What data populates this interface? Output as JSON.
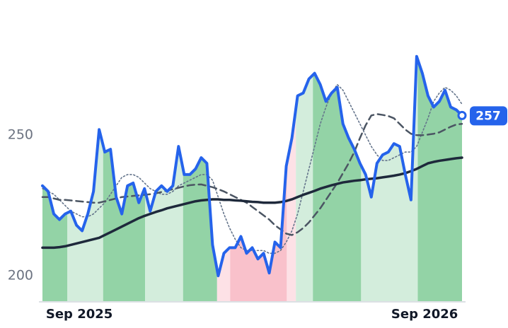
{
  "chart_data": {
    "type": "line",
    "xlim": [
      0,
      74
    ],
    "ylim": [
      191,
      288
    ],
    "yticks": [
      200,
      250
    ],
    "xticks": [
      {
        "value": 6.5,
        "label": "Sep 2025"
      },
      {
        "value": 67.4,
        "label": "Sep 2026"
      }
    ],
    "shading": [
      {
        "from": 0,
        "to": 4.4,
        "color": "#93d3a6"
      },
      {
        "from": 4.4,
        "to": 10.7,
        "color": "#d3eddc"
      },
      {
        "from": 10.7,
        "to": 18.1,
        "color": "#93d3a6"
      },
      {
        "from": 18.1,
        "to": 24.8,
        "color": "#d3eddc"
      },
      {
        "from": 24.8,
        "to": 30.8,
        "color": "#93d3a6"
      },
      {
        "from": 30.8,
        "to": 33.1,
        "color": "#fde1e6"
      },
      {
        "from": 33.1,
        "to": 43.1,
        "color": "#f9c1cb"
      },
      {
        "from": 43.1,
        "to": 44.7,
        "color": "#fde1e6"
      },
      {
        "from": 44.7,
        "to": 47.7,
        "color": "#d3eddc"
      },
      {
        "from": 47.7,
        "to": 56.2,
        "color": "#93d3a6"
      },
      {
        "from": 56.2,
        "to": 66.2,
        "color": "#d3eddc"
      },
      {
        "from": 66.2,
        "to": 74,
        "color": "#93d3a6"
      }
    ],
    "series": [
      {
        "color": "#2563eb",
        "width": 4,
        "dash": "none",
        "values": [
          232,
          230,
          222,
          220,
          222,
          223,
          218,
          216,
          222,
          230,
          252,
          244,
          245,
          228,
          222,
          232,
          233,
          226,
          231,
          223,
          230,
          232,
          230,
          232,
          246,
          236,
          236,
          238,
          242,
          240,
          211,
          200,
          208,
          210,
          210,
          214,
          208,
          210,
          206,
          208,
          201,
          212,
          210,
          239,
          249,
          264,
          265,
          270,
          272,
          268,
          262,
          265,
          267,
          254,
          249,
          245,
          240,
          236,
          228,
          240,
          243,
          244,
          247,
          246,
          236,
          227,
          278,
          272,
          264,
          260,
          262,
          266,
          260,
          259,
          257
        ]
      },
      {
        "color": "#1e293b",
        "width": 3.5,
        "dash": "none",
        "values": [
          210,
          210,
          210,
          210.2,
          210.5,
          211,
          211.5,
          212,
          212.5,
          213,
          213.5,
          214.5,
          215.5,
          216.5,
          217.5,
          218.5,
          219.5,
          220.5,
          221.3,
          222,
          222.7,
          223.3,
          224,
          224.5,
          225,
          225.5,
          226,
          226.5,
          226.8,
          227,
          227.2,
          227.2,
          227,
          227,
          226.8,
          226.7,
          226.5,
          226.3,
          226.2,
          226,
          226,
          226,
          226.2,
          226.6,
          227.2,
          228,
          228.8,
          229.5,
          230.2,
          231,
          231.6,
          232.2,
          232.7,
          233.2,
          233.5,
          233.8,
          234,
          234.3,
          234.5,
          234.7,
          235,
          235.3,
          235.6,
          236,
          236.5,
          237.2,
          238,
          239,
          240,
          240.5,
          240.9,
          241.2,
          241.5,
          241.8,
          242
        ]
      },
      {
        "color": "#4b5563",
        "width": 2.5,
        "dash": "10 6",
        "values": [
          228,
          228,
          227.5,
          227,
          227,
          226.8,
          226.6,
          226.4,
          226.2,
          226,
          226,
          226.5,
          227,
          227.5,
          228,
          228.2,
          228.4,
          228.6,
          228.8,
          229,
          229.3,
          229.8,
          230.3,
          230.8,
          231.3,
          231.8,
          232.2,
          232.4,
          232.5,
          232,
          231.5,
          230.8,
          230,
          229,
          228,
          227,
          226,
          224.5,
          223,
          221.5,
          220,
          218,
          216.5,
          215,
          214.5,
          215.5,
          217,
          219,
          221.5,
          224,
          227,
          230,
          233,
          236.5,
          240,
          244,
          249,
          253.5,
          257,
          257.5,
          257.2,
          256.8,
          256,
          254,
          252,
          250.5,
          250,
          250,
          250.2,
          250.5,
          251,
          252,
          253,
          253.8,
          254
        ]
      },
      {
        "color": "#64748b",
        "width": 1.6,
        "dash": "2 3",
        "values": [
          231,
          230,
          229,
          227,
          225,
          223,
          222,
          221,
          221,
          222,
          224,
          226,
          229,
          232,
          235,
          236,
          236,
          235,
          233,
          231,
          230,
          229,
          229,
          230,
          232,
          233,
          234,
          235,
          236,
          236,
          234,
          228,
          222,
          217,
          213,
          210,
          209,
          209,
          209,
          209,
          208,
          208,
          209,
          212,
          216,
          222,
          230,
          238,
          246,
          254,
          260,
          265,
          268,
          266,
          262,
          258,
          254,
          250,
          246,
          243,
          241,
          241,
          242,
          243,
          244,
          244,
          246,
          251,
          256,
          262,
          265,
          267,
          266,
          264,
          261
        ]
      }
    ]
  }
}
